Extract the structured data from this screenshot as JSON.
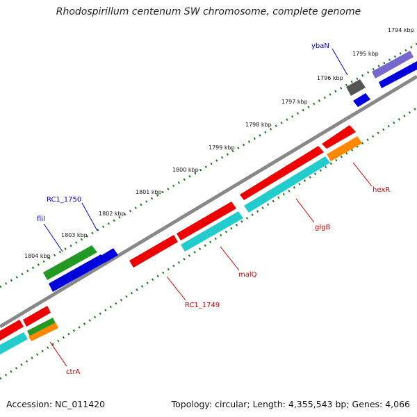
{
  "title": "Rhodospirillum centenum SW chromosome, complete genome",
  "footer": {
    "accession": "Accession: NC_011420",
    "summary": "Topology: circular; Length: 4,355,543 bp; Genes: 4,066"
  },
  "ticks": [
    "1794 kbp",
    "1795 kbp",
    "1796 kbp",
    "1797 kbp",
    "1798 kbp",
    "1799 kbp",
    "1800 kbp",
    "1801 kbp",
    "1802 kbp",
    "1803 kbp",
    "1804 kbp"
  ],
  "gene_labels": {
    "ybaN": "ybaN",
    "rc1750": "RC1_1750",
    "flil": "flil",
    "hexR": "hexR",
    "glgB": "glgB",
    "malQ": "malQ",
    "rc1749": "RC1_1749",
    "ctrA": "ctrA"
  },
  "colors": {
    "forward_label": "#0000cc",
    "reverse_label": "#cc0000",
    "backbone": "#888888",
    "tick": "#1a7a1a",
    "red": "#ee0000",
    "cyan": "#22cccc",
    "blue": "#0000dd",
    "green": "#229922",
    "orange": "#ff8800",
    "gray": "#555555",
    "purple": "#7766cc"
  }
}
